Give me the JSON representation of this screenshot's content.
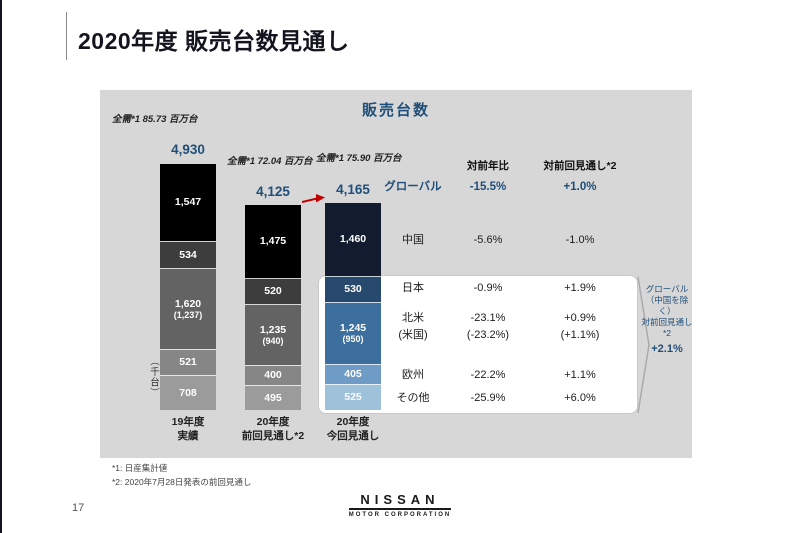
{
  "slide": {
    "title": "2020年度 販売台数見通し",
    "page_number": "17",
    "footnote1": "*1: 日産集計値",
    "footnote2": "*2: 2020年7月28日発表の前回見通し",
    "logo_brand": "NISSAN",
    "logo_sub": "MOTOR CORPORATION"
  },
  "chart_data": {
    "type": "bar",
    "stacked": true,
    "title": "販売台数",
    "unit_label": "（千台）",
    "ylabel": "千台",
    "categories": [
      "19年度\n実績",
      "20年度\n前回見通し*2",
      "20年度\n今回見通し"
    ],
    "totals": [
      "4,930",
      "4,125",
      "4,165"
    ],
    "demand_labels": [
      "全需*1 85.73 百万台",
      "全需*1 72.04 百万台",
      "全需*1 75.90 百万台"
    ],
    "segment_regions": [
      "中国",
      "日本",
      "北米（米国）",
      "欧州",
      "その他"
    ],
    "bars": [
      {
        "name": "19年度実績",
        "total": 4930,
        "segments": [
          {
            "label": "1,547",
            "value": 1547
          },
          {
            "label": "534",
            "value": 534
          },
          {
            "label": "1,620",
            "sub": "(1,237)",
            "value": 1620
          },
          {
            "label": "521",
            "value": 521
          },
          {
            "label": "708",
            "value": 708
          }
        ]
      },
      {
        "name": "20年度前回見通し*2",
        "total": 4125,
        "segments": [
          {
            "label": "1,475",
            "value": 1475
          },
          {
            "label": "520",
            "value": 520
          },
          {
            "label": "1,235",
            "sub": "(940)",
            "value": 1235
          },
          {
            "label": "400",
            "value": 400
          },
          {
            "label": "495",
            "value": 495
          }
        ]
      },
      {
        "name": "20年度今回見通し",
        "total": 4165,
        "segments": [
          {
            "label": "1,460",
            "value": 1460
          },
          {
            "label": "530",
            "value": 530
          },
          {
            "label": "1,245",
            "sub": "(950)",
            "value": 1245
          },
          {
            "label": "405",
            "value": 405
          },
          {
            "label": "525",
            "value": 525
          }
        ]
      }
    ],
    "colors": {
      "gray_segments": [
        "#000000",
        "#3d3d3d",
        "#636363",
        "#868686",
        "#9b9b9b"
      ],
      "blue_segments": [
        "#131c2e",
        "#27496d",
        "#3c6e9e",
        "#6e9cc6",
        "#9dc2da"
      ],
      "accent_blue": "#1f4e79",
      "arrow_red": "#c00000",
      "panel_gray": "#d7d7d7"
    }
  },
  "table": {
    "col_yoy": "対前年比",
    "col_prev": "対前回見通し*2",
    "rows": [
      {
        "region": "グローバル",
        "yoy": "-15.5%",
        "prev": "+1.0%"
      },
      {
        "region": "中国",
        "yoy": "-5.6%",
        "prev": "-1.0%"
      },
      {
        "region": "日本",
        "yoy": "-0.9%",
        "prev": "+1.9%"
      },
      {
        "region": "北米",
        "region2": "(米国)",
        "yoy": "-23.1%",
        "yoy2": "(-23.2%)",
        "prev": "+0.9%",
        "prev2": "(+1.1%)"
      },
      {
        "region": "欧州",
        "yoy": "-22.2%",
        "prev": "+1.1%"
      },
      {
        "region": "その他",
        "yoy": "-25.9%",
        "prev": "+6.0%"
      }
    ]
  },
  "callout": {
    "line1": "グローバル",
    "line2": "（中国を除く）",
    "line3": "対前回見通し*2",
    "value": "+2.1%"
  }
}
